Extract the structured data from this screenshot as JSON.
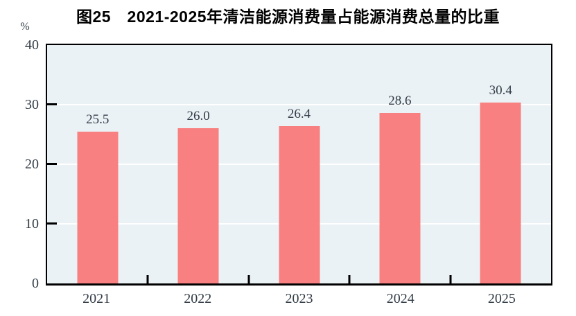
{
  "chart_data": {
    "type": "bar",
    "title": "图25　2021-2025年清洁能源消费量占能源消费总量的比重",
    "categories": [
      "2021",
      "2022",
      "2023",
      "2024",
      "2025"
    ],
    "values": [
      25.5,
      26.0,
      26.4,
      28.6,
      30.4
    ],
    "value_labels": [
      "25.5",
      "26.0",
      "26.4",
      "28.6",
      "30.4"
    ],
    "xlabel": "",
    "ylabel": "%",
    "ylim": [
      0,
      40
    ],
    "yticks": [
      0,
      10,
      20,
      30,
      40
    ],
    "grid": true,
    "legend_position": "none",
    "colors": {
      "bar": "#F98080",
      "plot_bg": "#EBF2F6",
      "grid": "#FFFFFF",
      "axis": "#000000",
      "text": "#323C46"
    }
  }
}
